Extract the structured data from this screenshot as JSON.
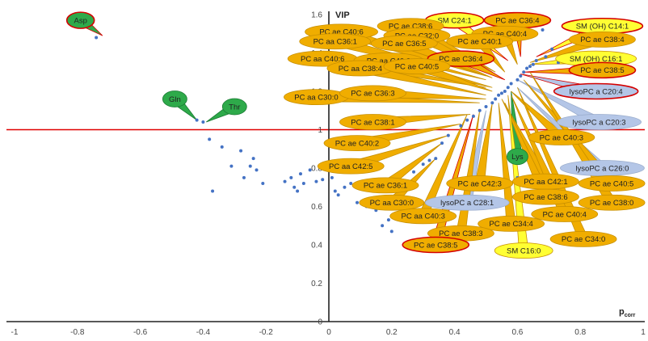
{
  "chart_data": {
    "type": "scatter",
    "xlabel": "p",
    "xlabel_sub": "corr",
    "ylabel": "VIP",
    "xlim": [
      -1,
      1
    ],
    "ylim": [
      0,
      1.6
    ],
    "x_ticks": [
      "-1",
      "-0.8",
      "-0.6",
      "-0.4",
      "-0.2",
      "0",
      "0.2",
      "0.4",
      "0.6",
      "0.8",
      "1"
    ],
    "y_ticks": [
      "0",
      "0.2",
      "0.4",
      "0.6",
      "0.8",
      "1",
      "1.2",
      "1.4",
      "1.6"
    ],
    "threshold_vip": 1.0,
    "point_color": "#4472c4",
    "threshold_color": "#e00000",
    "category_colors": {
      "PC": "#f0ad00",
      "lysoPC": "#b4c6e7",
      "SM": "#ffff33",
      "AminoAcid": "#2eaa4a"
    },
    "points": [
      [
        -0.74,
        1.48
      ],
      [
        -0.42,
        1.05
      ],
      [
        -0.4,
        1.04
      ],
      [
        -0.38,
        0.95
      ],
      [
        -0.34,
        0.91
      ],
      [
        -0.31,
        0.81
      ],
      [
        -0.28,
        0.89
      ],
      [
        -0.27,
        0.75
      ],
      [
        -0.25,
        0.81
      ],
      [
        -0.24,
        0.85
      ],
      [
        -0.23,
        0.79
      ],
      [
        -0.21,
        0.72
      ],
      [
        -0.37,
        0.68
      ],
      [
        -0.14,
        0.73
      ],
      [
        -0.12,
        0.75
      ],
      [
        -0.11,
        0.7
      ],
      [
        -0.1,
        0.68
      ],
      [
        -0.09,
        0.77
      ],
      [
        -0.08,
        0.72
      ],
      [
        -0.06,
        0.79
      ],
      [
        -0.04,
        0.73
      ],
      [
        -0.02,
        0.74
      ],
      [
        0.01,
        0.75
      ],
      [
        0.02,
        0.68
      ],
      [
        0.03,
        0.66
      ],
      [
        0.05,
        0.7
      ],
      [
        0.07,
        0.72
      ],
      [
        0.09,
        0.62
      ],
      [
        0.12,
        0.6
      ],
      [
        0.15,
        0.58
      ],
      [
        0.17,
        0.5
      ],
      [
        0.19,
        0.53
      ],
      [
        0.2,
        0.47
      ],
      [
        0.23,
        0.64
      ],
      [
        0.25,
        0.69
      ],
      [
        0.27,
        0.78
      ],
      [
        0.3,
        0.82
      ],
      [
        0.32,
        0.84
      ],
      [
        0.34,
        0.85
      ],
      [
        0.36,
        0.93
      ],
      [
        0.38,
        0.97
      ],
      [
        0.42,
        1.02
      ],
      [
        0.44,
        1.05
      ],
      [
        0.46,
        1.07
      ],
      [
        0.48,
        1.1
      ],
      [
        0.5,
        1.12
      ],
      [
        0.52,
        1.14
      ],
      [
        0.53,
        1.16
      ],
      [
        0.54,
        1.18
      ],
      [
        0.55,
        1.19
      ],
      [
        0.56,
        1.2
      ],
      [
        0.57,
        1.22
      ],
      [
        0.58,
        1.24
      ],
      [
        0.6,
        1.26
      ],
      [
        0.61,
        1.28
      ],
      [
        0.62,
        1.3
      ],
      [
        0.63,
        1.32
      ],
      [
        0.64,
        1.33
      ],
      [
        0.65,
        1.34
      ],
      [
        0.66,
        1.36
      ],
      [
        0.69,
        1.38
      ],
      [
        0.71,
        1.42
      ],
      [
        0.73,
        1.35
      ],
      [
        0.68,
        1.52
      ],
      [
        0.6,
        0.75
      ]
    ],
    "annotations": [
      {
        "text": "Asp",
        "cat": "AminoAcid",
        "w": 34,
        "lx": -0.79,
        "ly": 1.57,
        "tx": -0.72,
        "ty": 1.49
      },
      {
        "text": "Gln",
        "cat": "AminoAcid",
        "w": 30,
        "lx": -0.49,
        "ly": 1.16,
        "tx": -0.42,
        "ty": 1.05
      },
      {
        "text": "Thr",
        "cat": "AminoAcid",
        "w": 30,
        "lx": -0.3,
        "ly": 1.12,
        "tx": -0.39,
        "ty": 1.04
      },
      {
        "text": "Lys",
        "cat": "AminoAcid",
        "w": 26,
        "lx": 0.6,
        "ly": 0.86,
        "tx": 0.58,
        "ty": 1.2
      },
      {
        "text": "SM C24:1",
        "cat": "SM",
        "w": 72,
        "lx": 0.4,
        "ly": 1.57,
        "tx": 0.57,
        "ty": 1.36
      },
      {
        "text": "PC ae C36:4",
        "cat": "PC",
        "w": 82,
        "lx": 0.6,
        "ly": 1.57,
        "tx": 0.61,
        "ty": 1.38
      },
      {
        "text": "SM (OH) C14:1",
        "cat": "SM",
        "w": 100,
        "lx": 0.87,
        "ly": 1.54,
        "tx": 0.66,
        "ty": 1.38
      },
      {
        "text": "PC ae C38:6",
        "cat": "PC",
        "w": 82,
        "lx": 0.26,
        "ly": 1.54,
        "tx": 0.53,
        "ty": 1.3
      },
      {
        "text": "PC ae C40:4",
        "cat": "PC",
        "w": 82,
        "lx": 0.56,
        "ly": 1.5,
        "tx": 0.6,
        "ty": 1.34
      },
      {
        "text": "PC ae C40:6",
        "cat": "PC",
        "w": 90,
        "lx": 0.04,
        "ly": 1.51,
        "tx": 0.5,
        "ty": 1.28
      },
      {
        "text": "PC ae C32:0",
        "cat": "PC",
        "w": 82,
        "lx": 0.28,
        "ly": 1.49,
        "tx": 0.52,
        "ty": 1.3
      },
      {
        "text": "PC aa C36:1",
        "cat": "PC",
        "w": 88,
        "lx": 0.02,
        "ly": 1.46,
        "tx": 0.5,
        "ty": 1.26
      },
      {
        "text": "PC ae C36:5",
        "cat": "PC",
        "w": 82,
        "lx": 0.24,
        "ly": 1.45,
        "tx": 0.52,
        "ty": 1.27
      },
      {
        "text": "PC ae C40:1",
        "cat": "PC",
        "w": 82,
        "lx": 0.48,
        "ly": 1.46,
        "tx": 0.56,
        "ty": 1.3
      },
      {
        "text": "PC ae C38:4",
        "cat": "PC",
        "w": 82,
        "lx": 0.87,
        "ly": 1.47,
        "tx": 0.64,
        "ty": 1.35
      },
      {
        "text": "SM (OH) C16:1",
        "cat": "SM",
        "w": 100,
        "lx": 0.85,
        "ly": 1.37,
        "tx": 0.64,
        "ty": 1.34
      },
      {
        "text": "PC aa C40:6",
        "cat": "PC",
        "w": 86,
        "lx": -0.02,
        "ly": 1.37,
        "tx": 0.5,
        "ty": 1.22
      },
      {
        "text": "PC aa C40:2",
        "cat": "PC",
        "w": 86,
        "lx": 0.19,
        "ly": 1.36,
        "tx": 0.52,
        "ty": 1.22
      },
      {
        "text": "PC ae C36:4",
        "cat": "PC",
        "w": 82,
        "lx": 0.42,
        "ly": 1.37,
        "tx": 0.56,
        "ty": 1.26
      },
      {
        "text": "PC aa C38:4",
        "cat": "PC",
        "w": 82,
        "lx": 0.1,
        "ly": 1.32,
        "tx": 0.5,
        "ty": 1.18
      },
      {
        "text": "PC ae C40:5",
        "cat": "PC",
        "w": 82,
        "lx": 0.28,
        "ly": 1.33,
        "tx": 0.52,
        "ty": 1.2
      },
      {
        "text": "PC ae C38:5",
        "cat": "PC",
        "w": 82,
        "lx": 0.87,
        "ly": 1.31,
        "tx": 0.62,
        "ty": 1.3
      },
      {
        "text": "lysoPC a C20:4",
        "cat": "lysoPC",
        "w": 104,
        "lx": 0.85,
        "ly": 1.2,
        "tx": 0.61,
        "ty": 1.29
      },
      {
        "text": "PC aa C30:0",
        "cat": "PC",
        "w": 80,
        "lx": -0.04,
        "ly": 1.17,
        "tx": 0.48,
        "ty": 1.14
      },
      {
        "text": "PC ae C36:3",
        "cat": "PC",
        "w": 82,
        "lx": 0.14,
        "ly": 1.19,
        "tx": 0.5,
        "ty": 1.16
      },
      {
        "text": "lysoPC a C20:3",
        "cat": "lysoPC",
        "w": 104,
        "lx": 0.86,
        "ly": 1.04,
        "tx": 0.6,
        "ty": 1.26
      },
      {
        "text": "PC ae C38:1",
        "cat": "PC",
        "w": 82,
        "lx": 0.14,
        "ly": 1.04,
        "tx": 0.45,
        "ty": 1.08
      },
      {
        "text": "PC ae C40:3",
        "cat": "PC",
        "w": 82,
        "lx": 0.74,
        "ly": 0.96,
        "tx": 0.58,
        "ty": 1.2
      },
      {
        "text": "PC ae C40:2",
        "cat": "PC",
        "w": 82,
        "lx": 0.09,
        "ly": 0.93,
        "tx": 0.42,
        "ty": 1.03
      },
      {
        "text": "lysoPC a C26:0",
        "cat": "lysoPC",
        "w": 104,
        "lx": 0.87,
        "ly": 0.8,
        "tx": 0.6,
        "ty": 1.22
      },
      {
        "text": "PC aa C42:5",
        "cat": "PC",
        "w": 82,
        "lx": 0.07,
        "ly": 0.81,
        "tx": 0.38,
        "ty": 0.97
      },
      {
        "text": "PC aa C42:1",
        "cat": "PC",
        "w": 82,
        "lx": 0.69,
        "ly": 0.73,
        "tx": 0.55,
        "ty": 1.16
      },
      {
        "text": "PC ae C40:5",
        "cat": "PC",
        "w": 82,
        "lx": 0.9,
        "ly": 0.72,
        "tx": 0.62,
        "ty": 1.26
      },
      {
        "text": "PC ae C36:1",
        "cat": "PC",
        "w": 82,
        "lx": 0.18,
        "ly": 0.71,
        "tx": 0.36,
        "ty": 0.93
      },
      {
        "text": "PC ae C42:3",
        "cat": "PC",
        "w": 82,
        "lx": 0.48,
        "ly": 0.72,
        "tx": 0.52,
        "ty": 1.14
      },
      {
        "text": "PC ae C38:6",
        "cat": "PC",
        "w": 82,
        "lx": 0.69,
        "ly": 0.65,
        "tx": 0.56,
        "ty": 1.14
      },
      {
        "text": "PC ae C38:0",
        "cat": "PC",
        "w": 82,
        "lx": 0.9,
        "ly": 0.62,
        "tx": 0.64,
        "ty": 1.3
      },
      {
        "text": "PC aa C30:0",
        "cat": "PC",
        "w": 80,
        "lx": 0.2,
        "ly": 0.62,
        "tx": 0.34,
        "ty": 0.85
      },
      {
        "text": "lysoPC a C28:1",
        "cat": "lysoPC",
        "w": 104,
        "lx": 0.44,
        "ly": 0.62,
        "tx": 0.5,
        "ty": 1.1
      },
      {
        "text": "PC aa C40:3",
        "cat": "PC",
        "w": 82,
        "lx": 0.3,
        "ly": 0.55,
        "tx": 0.44,
        "ty": 1.08
      },
      {
        "text": "PC ae C40:4",
        "cat": "PC",
        "w": 82,
        "lx": 0.75,
        "ly": 0.56,
        "tx": 0.58,
        "ty": 1.18
      },
      {
        "text": "PC ae C34:4",
        "cat": "PC",
        "w": 82,
        "lx": 0.58,
        "ly": 0.51,
        "tx": 0.54,
        "ty": 1.14
      },
      {
        "text": "PC ae C38:3",
        "cat": "PC",
        "w": 82,
        "lx": 0.42,
        "ly": 0.46,
        "tx": 0.48,
        "ty": 1.1
      },
      {
        "text": "PC ae C34:0",
        "cat": "PC",
        "w": 82,
        "lx": 0.81,
        "ly": 0.43,
        "tx": 0.6,
        "ty": 1.22
      },
      {
        "text": "PC ae C38:5",
        "cat": "PC",
        "w": 82,
        "lx": 0.34,
        "ly": 0.4,
        "tx": 0.46,
        "ty": 1.08
      },
      {
        "text": "SM C16:0",
        "cat": "SM",
        "w": 72,
        "lx": 0.62,
        "ly": 0.37,
        "tx": 0.57,
        "ty": 1.18
      }
    ]
  }
}
